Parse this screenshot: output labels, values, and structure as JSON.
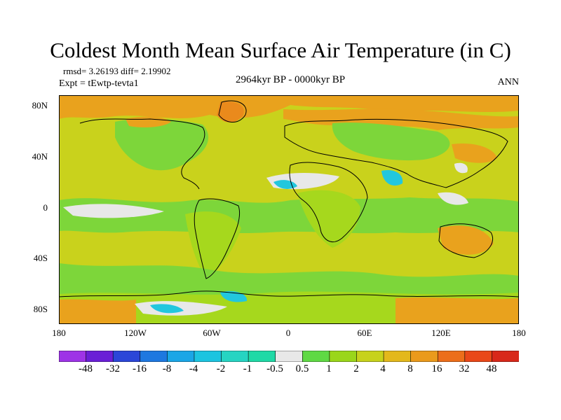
{
  "figure": {
    "title": "Coldest Month Mean Surface Air Temperature (in C)",
    "stats": "rmsd= 3.26193 diff= 2.19902",
    "experiment": "Expt = tEwtp-tevta1",
    "period": "2964kyr BP - 0000kyr BP",
    "season": "ANN"
  },
  "axes": {
    "lat_ticks": [
      "80N",
      "40N",
      "0",
      "40S",
      "80S"
    ],
    "lon_ticks": [
      "180",
      "120W",
      "60W",
      "0",
      "60E",
      "120E",
      "180"
    ]
  },
  "colorbar": {
    "labels": [
      "-48",
      "-32",
      "-16",
      "-8",
      "-4",
      "-2",
      "-1",
      "-0.5",
      "0.5",
      "1",
      "2",
      "4",
      "8",
      "16",
      "32",
      "48"
    ],
    "colors": [
      "#9e33e6",
      "#6a1fd6",
      "#2b46d8",
      "#1e78e0",
      "#1aa6e6",
      "#1cc4e0",
      "#26d4c2",
      "#1fd9a6",
      "#e8e8e8",
      "#5fd944",
      "#9ad61a",
      "#c7d21c",
      "#e3b81c",
      "#ea9a1c",
      "#ec6e1a",
      "#e94818",
      "#d8281a"
    ]
  },
  "map_colors": {
    "ocean_base": "#c9d21c",
    "green": "#7dd63a",
    "lightgreen": "#a6d81d",
    "orange": "#e9a21d",
    "deeporange": "#ea8a1c",
    "white": "#e8e8e8",
    "cyan": "#22c7de",
    "teal": "#27d8b0",
    "coast": "#000000"
  }
}
